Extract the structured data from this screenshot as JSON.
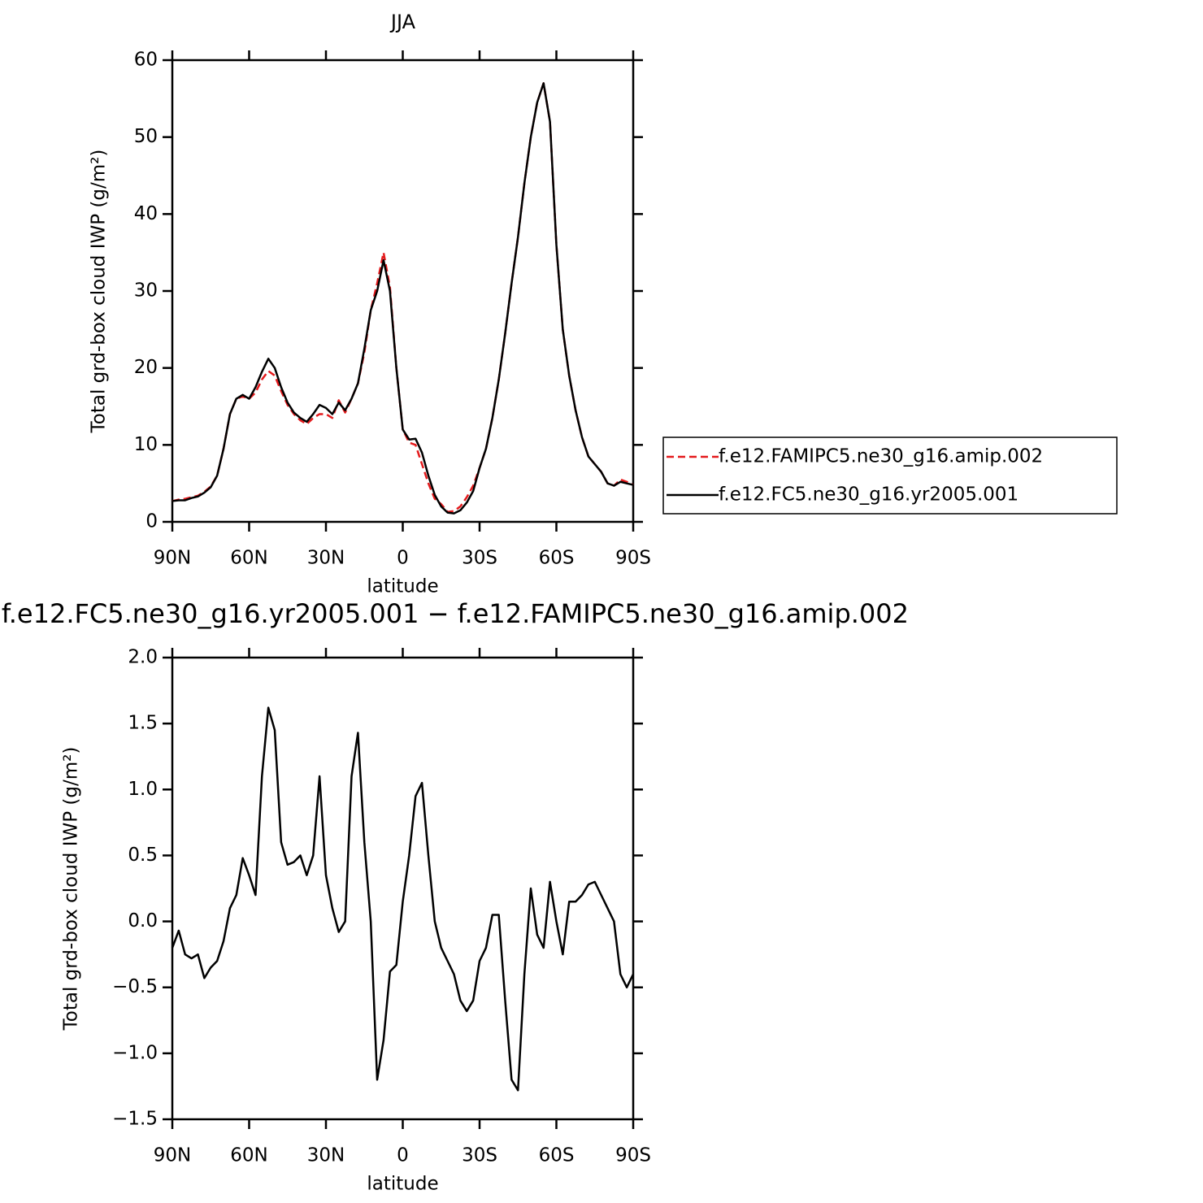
{
  "chart_data": [
    {
      "type": "line",
      "title": "JJA",
      "x_label": "latitude",
      "y_label": "Total grd-box cloud IWP (g/m²)",
      "x": [
        90,
        87.5,
        85,
        82.5,
        80,
        77.5,
        75,
        72.5,
        70,
        67.5,
        65,
        62.5,
        60,
        57.5,
        55,
        52.5,
        50,
        47.5,
        45,
        42.5,
        40,
        37.5,
        35,
        32.5,
        30,
        27.5,
        25,
        22.5,
        20,
        17.5,
        15,
        12.5,
        10,
        7.5,
        5,
        2.5,
        0,
        -2.5,
        -5,
        -7.5,
        -10,
        -12.5,
        -15,
        -17.5,
        -20,
        -22.5,
        -25,
        -27.5,
        -30,
        -32.5,
        -35,
        -37.5,
        -40,
        -42.5,
        -45,
        -47.5,
        -50,
        -52.5,
        -55,
        -57.5,
        -60,
        -62.5,
        -65,
        -67.5,
        -70,
        -72.5,
        -75,
        -77.5,
        -80,
        -82.5,
        -85,
        -87.5,
        -90
      ],
      "series": [
        {
          "name": "f.e12.FAMIPC5.ne30_g16.amip.002",
          "color": "#e41a1c",
          "linestyle": "dashed",
          "values": [
            2.7,
            2.9,
            3.0,
            3.2,
            3.4,
            3.9,
            4.6,
            6.0,
            9.5,
            14.0,
            16.0,
            16.3,
            16.0,
            16.8,
            18.5,
            19.6,
            19.0,
            17.0,
            15.2,
            14.0,
            13.2,
            12.7,
            13.5,
            14.0,
            14.0,
            13.5,
            15.8,
            14.2,
            16.0,
            18.0,
            22.0,
            27.5,
            31.0,
            35.0,
            30.5,
            20.0,
            12.0,
            10.3,
            10.0,
            7.5,
            5.0,
            3.0,
            2.3,
            1.3,
            1.4,
            2.0,
            3.2,
            4.7,
            7.0,
            9.5,
            13.5,
            18.5,
            24.5,
            31.0,
            37.0,
            44.0,
            50.0,
            54.5,
            57.0,
            52.0,
            36.0,
            25.0,
            19.0,
            14.5,
            11.0,
            8.5,
            7.5,
            6.5,
            5.0,
            4.7,
            5.5,
            5.2,
            4.8
          ]
        },
        {
          "name": "f.e12.FC5.ne30_g16.yr2005.001",
          "color": "#000000",
          "linestyle": "solid",
          "values": [
            2.7,
            2.8,
            2.8,
            3.1,
            3.3,
            3.8,
            4.5,
            6.0,
            9.5,
            14.0,
            16.0,
            16.5,
            16.0,
            17.5,
            19.5,
            21.2,
            20.0,
            17.5,
            15.5,
            14.2,
            13.5,
            13.0,
            14.0,
            15.2,
            14.8,
            14.0,
            15.5,
            14.5,
            16.0,
            18.0,
            22.5,
            27.5,
            30.0,
            34.0,
            30.0,
            20.0,
            12.0,
            10.7,
            10.8,
            9.0,
            6.0,
            3.5,
            2.0,
            1.2,
            1.1,
            1.5,
            2.5,
            4.0,
            7.0,
            9.5,
            13.5,
            18.5,
            24.5,
            31.0,
            37.0,
            44.0,
            50.0,
            54.5,
            57.0,
            52.0,
            36.0,
            25.0,
            19.0,
            14.5,
            11.0,
            8.5,
            7.5,
            6.5,
            5.0,
            4.7,
            5.2,
            5.0,
            4.8
          ]
        }
      ],
      "xlim": [
        90,
        -90
      ],
      "xticks": [
        {
          "value": 90,
          "label": "90N"
        },
        {
          "value": 60,
          "label": "60N"
        },
        {
          "value": 30,
          "label": "30N"
        },
        0,
        {
          "value": -30,
          "label": "30S"
        },
        {
          "value": -60,
          "label": "60S"
        },
        {
          "value": -90,
          "label": "90S"
        }
      ],
      "ylim": [
        0,
        60
      ],
      "yticks": [
        0,
        10,
        20,
        30,
        40,
        50,
        60
      ],
      "legend": "right"
    },
    {
      "type": "line",
      "title": "f.e12.FC5.ne30_g16.yr2005.001 − f.e12.FAMIPC5.ne30_g16.amip.002",
      "x_label": "latitude",
      "y_label": "Total grd-box cloud IWP (g/m²)",
      "x": [
        90,
        87.5,
        85,
        82.5,
        80,
        77.5,
        75,
        72.5,
        70,
        67.5,
        65,
        62.5,
        60,
        57.5,
        55,
        52.5,
        50,
        47.5,
        45,
        42.5,
        40,
        37.5,
        35,
        32.5,
        30,
        27.5,
        25,
        22.5,
        20,
        17.5,
        15,
        12.5,
        10,
        7.5,
        5,
        2.5,
        0,
        -2.5,
        -5,
        -7.5,
        -10,
        -12.5,
        -15,
        -17.5,
        -20,
        -22.5,
        -25,
        -27.5,
        -30,
        -32.5,
        -35,
        -37.5,
        -40,
        -42.5,
        -45,
        -47.5,
        -50,
        -52.5,
        -55,
        -57.5,
        -60,
        -62.5,
        -65,
        -67.5,
        -70,
        -72.5,
        -75,
        -77.5,
        -80,
        -82.5,
        -85,
        -87.5,
        -90
      ],
      "series": [
        {
          "color": "#000000",
          "linestyle": "solid",
          "values": [
            -0.2,
            -0.07,
            -0.25,
            -0.28,
            -0.25,
            -0.43,
            -0.35,
            -0.3,
            -0.15,
            0.1,
            0.2,
            0.48,
            0.35,
            0.2,
            1.1,
            1.62,
            1.45,
            0.6,
            0.43,
            0.45,
            0.5,
            0.35,
            0.5,
            1.1,
            0.35,
            0.1,
            -0.08,
            0.0,
            1.1,
            1.43,
            0.6,
            0.0,
            -1.2,
            -0.9,
            -0.38,
            -0.33,
            0.15,
            0.5,
            0.95,
            1.05,
            0.5,
            0.0,
            -0.2,
            -0.3,
            -0.4,
            -0.6,
            -0.68,
            -0.6,
            -0.3,
            -0.2,
            0.05,
            0.05,
            -0.6,
            -1.2,
            -1.28,
            -0.4,
            0.25,
            -0.1,
            -0.2,
            0.3,
            0.0,
            -0.25,
            0.15,
            0.15,
            0.2,
            0.28,
            0.3,
            0.2,
            0.1,
            0.0,
            -0.4,
            -0.5,
            -0.4
          ]
        }
      ],
      "xlim": [
        90,
        -90
      ],
      "xticks": [
        {
          "value": 90,
          "label": "90N"
        },
        {
          "value": 60,
          "label": "60N"
        },
        {
          "value": 30,
          "label": "30N"
        },
        0,
        {
          "value": -30,
          "label": "30S"
        },
        {
          "value": -60,
          "label": "60S"
        },
        {
          "value": -90,
          "label": "90S"
        }
      ],
      "ylim": [
        -1.5,
        2.0
      ],
      "yticks": [
        {
          "value": 2.0,
          "label": "2.0"
        },
        1.5,
        {
          "value": 1.0,
          "label": "1.0"
        },
        0.5,
        {
          "value": 0,
          "label": "0.0"
        },
        {
          "value": -0.5,
          "label": "−0.5"
        },
        {
          "value": -1.0,
          "label": "−1.0"
        },
        {
          "value": -1.5,
          "label": "−1.5"
        }
      ]
    }
  ]
}
